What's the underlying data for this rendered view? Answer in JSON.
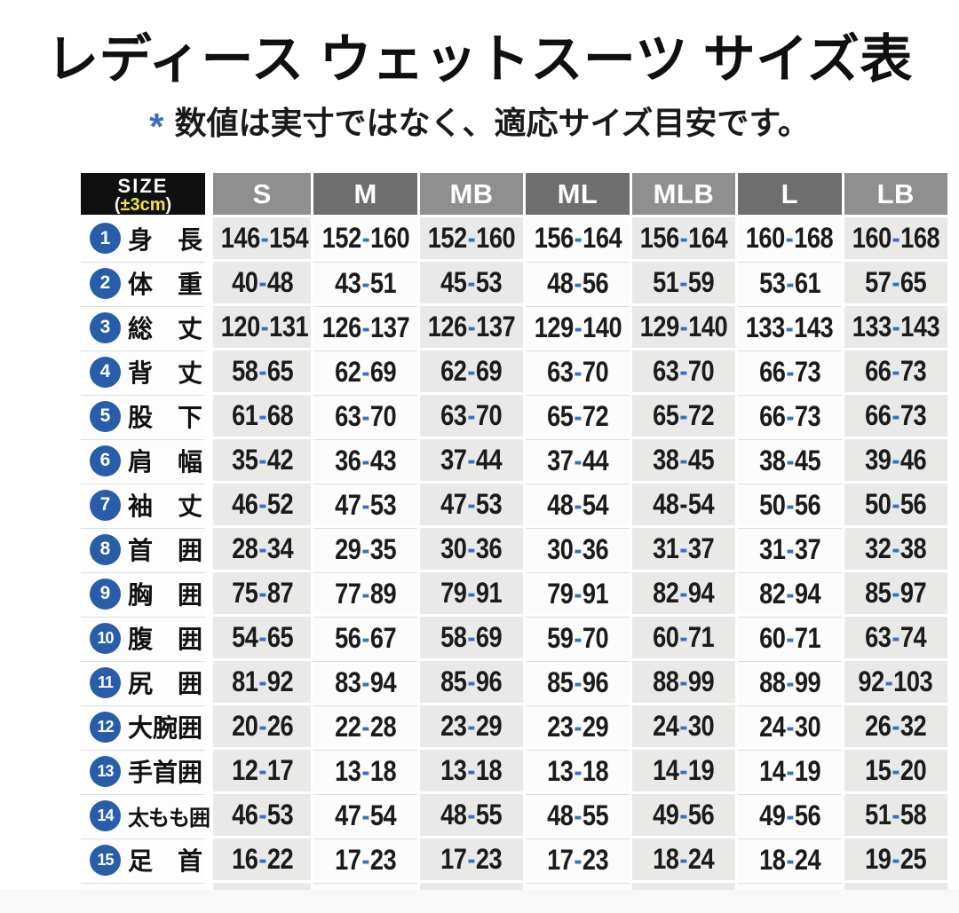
{
  "title": "レディース ウェットスーツ サイズ表",
  "note": {
    "marker": "*",
    "text": "数値は実寸ではなく、適応サイズ目安です。"
  },
  "colors": {
    "accent_blue": "#3a6fc0",
    "badge_blue": "#275da9",
    "tolerance_yellow": "#ede43c",
    "corner_bg": "#101010",
    "header_gray_light": "#8f8f8f",
    "header_gray_dark": "#6e6e6e",
    "cell_gray": "#e9e9e8",
    "cell_white": "#fcfcfc"
  },
  "table": {
    "corner": {
      "title": "SIZE",
      "paren_open": "(",
      "tolerance": "±3cm",
      "paren_close": ")"
    },
    "columns": [
      "S",
      "M",
      "MB",
      "ML",
      "MLB",
      "L",
      "LB"
    ],
    "black_dash_cells": [
      [
        6,
        4
      ]
    ],
    "rows": [
      {
        "num": "1",
        "label": "身　長",
        "values": [
          "146-154",
          "152-160",
          "152-160",
          "156-164",
          "156-164",
          "160-168",
          "160-168"
        ]
      },
      {
        "num": "2",
        "label": "体　重",
        "values": [
          "40-48",
          "43-51",
          "45-53",
          "48-56",
          "51-59",
          "53-61",
          "57-65"
        ]
      },
      {
        "num": "3",
        "label": "総　丈",
        "values": [
          "120-131",
          "126-137",
          "126-137",
          "129-140",
          "129-140",
          "133-143",
          "133-143"
        ]
      },
      {
        "num": "4",
        "label": "背　丈",
        "values": [
          "58-65",
          "62-69",
          "62-69",
          "63-70",
          "63-70",
          "66-73",
          "66-73"
        ]
      },
      {
        "num": "5",
        "label": "股　下",
        "values": [
          "61-68",
          "63-70",
          "63-70",
          "65-72",
          "65-72",
          "66-73",
          "66-73"
        ]
      },
      {
        "num": "6",
        "label": "肩　幅",
        "values": [
          "35-42",
          "36-43",
          "37-44",
          "37-44",
          "38-45",
          "38-45",
          "39-46"
        ]
      },
      {
        "num": "7",
        "label": "袖　丈",
        "values": [
          "46-52",
          "47-53",
          "47-53",
          "48-54",
          "48-54",
          "50-56",
          "50-56"
        ]
      },
      {
        "num": "8",
        "label": "首　囲",
        "values": [
          "28-34",
          "29-35",
          "30-36",
          "30-36",
          "31-37",
          "31-37",
          "32-38"
        ]
      },
      {
        "num": "9",
        "label": "胸　囲",
        "values": [
          "75-87",
          "77-89",
          "79-91",
          "79-91",
          "82-94",
          "82-94",
          "85-97"
        ]
      },
      {
        "num": "10",
        "label": "腹　囲",
        "values": [
          "54-65",
          "56-67",
          "58-69",
          "59-70",
          "60-71",
          "60-71",
          "63-74"
        ]
      },
      {
        "num": "11",
        "label": "尻　囲",
        "values": [
          "81-92",
          "83-94",
          "85-96",
          "85-96",
          "88-99",
          "88-99",
          "92-103"
        ]
      },
      {
        "num": "12",
        "label": "大腕囲",
        "values": [
          "20-26",
          "22-28",
          "23-29",
          "23-29",
          "24-30",
          "24-30",
          "26-32"
        ]
      },
      {
        "num": "13",
        "label": "手首囲",
        "values": [
          "12-17",
          "13-18",
          "13-18",
          "13-18",
          "14-19",
          "14-19",
          "15-20"
        ]
      },
      {
        "num": "14",
        "label": "太もも囲",
        "values": [
          "46-53",
          "47-54",
          "48-55",
          "48-55",
          "49-56",
          "49-56",
          "51-58"
        ]
      },
      {
        "num": "15",
        "label": "足　首",
        "values": [
          "16-22",
          "17-23",
          "17-23",
          "17-23",
          "18-24",
          "18-24",
          "19-25"
        ]
      }
    ]
  }
}
